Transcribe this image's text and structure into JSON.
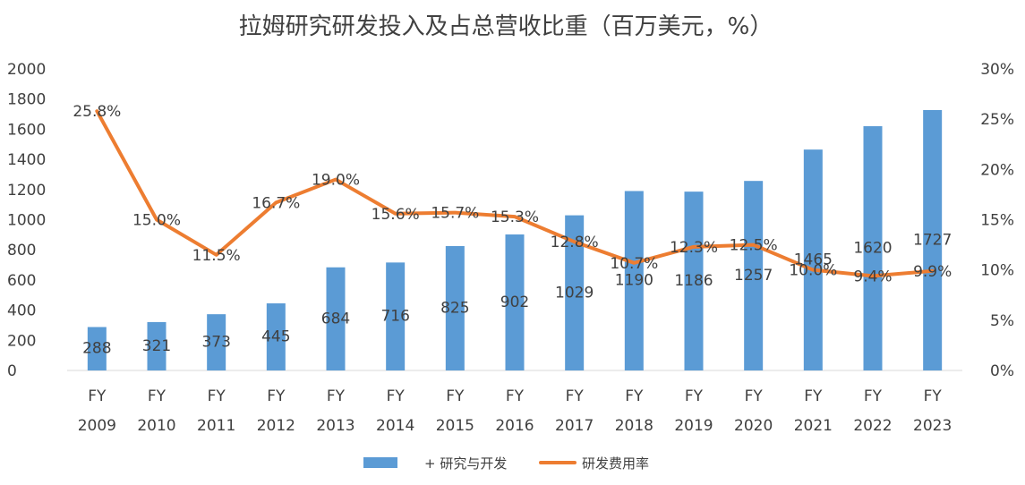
{
  "chart_data": {
    "type": "bar",
    "title": "拉姆研究研发投入及占总营收比重（百万美元，%）",
    "categories": [
      "FY 2009",
      "FY 2010",
      "FY 2011",
      "FY 2012",
      "FY 2013",
      "FY 2014",
      "FY 2015",
      "FY 2016",
      "FY 2017",
      "FY 2018",
      "FY 2019",
      "FY 2020",
      "FY 2021",
      "FY 2022",
      "FY 2023"
    ],
    "category_lines": [
      [
        "FY",
        "2009"
      ],
      [
        "FY",
        "2010"
      ],
      [
        "FY",
        "2011"
      ],
      [
        "FY",
        "2012"
      ],
      [
        "FY",
        "2013"
      ],
      [
        "FY",
        "2014"
      ],
      [
        "FY",
        "2015"
      ],
      [
        "FY",
        "2016"
      ],
      [
        "FY",
        "2017"
      ],
      [
        "FY",
        "2018"
      ],
      [
        "FY",
        "2019"
      ],
      [
        "FY",
        "2020"
      ],
      [
        "FY",
        "2021"
      ],
      [
        "FY",
        "2022"
      ],
      [
        "FY",
        "2023"
      ]
    ],
    "series": [
      {
        "name": "+ 研究与开发",
        "type": "bar",
        "axis": "left",
        "color": "#5B9BD5",
        "values": [
          288,
          321,
          373,
          445,
          684,
          716,
          825,
          902,
          1029,
          1190,
          1186,
          1257,
          1465,
          1620,
          1727
        ],
        "labels": [
          "288",
          "321",
          "373",
          "445",
          "684",
          "716",
          "825",
          "902",
          "1029",
          "1190",
          "1186",
          "1257",
          "1465",
          "1620",
          "1727"
        ]
      },
      {
        "name": "研发费用率",
        "type": "line",
        "axis": "right",
        "color": "#ED7D31",
        "values": [
          25.8,
          15.0,
          11.5,
          16.7,
          19.0,
          15.6,
          15.7,
          15.3,
          12.8,
          10.7,
          12.3,
          12.5,
          10.0,
          9.4,
          9.9
        ],
        "labels": [
          "25.8%",
          "15.0%",
          "11.5%",
          "16.7%",
          "19.0%",
          "15.6%",
          "15.7%",
          "15.3%",
          "12.8%",
          "10.7%",
          "12.3%",
          "12.5%",
          "10.0%",
          "9.4%",
          "9.9%"
        ]
      }
    ],
    "y_left": {
      "min": 0,
      "max": 2000,
      "ticks": [
        "0",
        "200",
        "400",
        "600",
        "800",
        "1000",
        "1200",
        "1400",
        "1600",
        "1800",
        "2000"
      ]
    },
    "y_right": {
      "min": 0,
      "max": 30,
      "ticks": [
        "0%",
        "5%",
        "10%",
        "15%",
        "20%",
        "25%",
        "30%"
      ]
    },
    "grid": false,
    "legend_position": "bottom-center"
  }
}
